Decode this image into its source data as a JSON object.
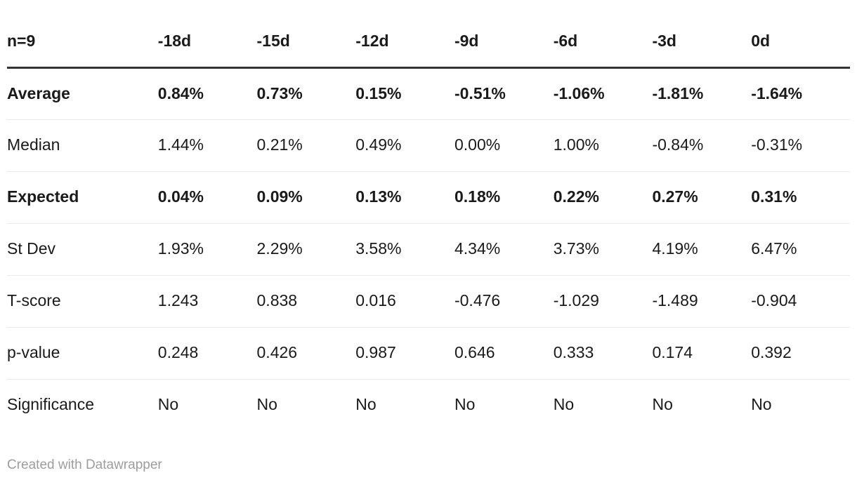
{
  "chart_data": {
    "type": "table",
    "title": "n=9",
    "columns": [
      "n=9",
      "-18d",
      "-15d",
      "-12d",
      "-9d",
      "-6d",
      "-3d",
      "0d"
    ],
    "rows": [
      {
        "label": "Average",
        "bold": true,
        "values": [
          "0.84%",
          "0.73%",
          "0.15%",
          "-0.51%",
          "-1.06%",
          "-1.81%",
          "-1.64%"
        ]
      },
      {
        "label": "Median",
        "bold": false,
        "values": [
          "1.44%",
          "0.21%",
          "0.49%",
          "0.00%",
          "1.00%",
          "-0.84%",
          "-0.31%"
        ]
      },
      {
        "label": "Expected",
        "bold": true,
        "values": [
          "0.04%",
          "0.09%",
          "0.13%",
          "0.18%",
          "0.22%",
          "0.27%",
          "0.31%"
        ]
      },
      {
        "label": "St Dev",
        "bold": false,
        "values": [
          "1.93%",
          "2.29%",
          "3.58%",
          "4.34%",
          "3.73%",
          "4.19%",
          "6.47%"
        ]
      },
      {
        "label": "T-score",
        "bold": false,
        "values": [
          "1.243",
          "0.838",
          "0.016",
          "-0.476",
          "-1.029",
          "-1.489",
          "-0.904"
        ]
      },
      {
        "label": "p-value",
        "bold": false,
        "values": [
          "0.248",
          "0.426",
          "0.987",
          "0.646",
          "0.333",
          "0.174",
          "0.392"
        ]
      },
      {
        "label": "Significance",
        "bold": false,
        "values": [
          "No",
          "No",
          "No",
          "No",
          "No",
          "No",
          "No"
        ]
      }
    ],
    "layout": {
      "header_rule_color": "#333333",
      "row_rule_color": "#ebebeb",
      "text_color": "#1a1a1a"
    }
  },
  "footer": {
    "credit": "Created with Datawrapper"
  }
}
